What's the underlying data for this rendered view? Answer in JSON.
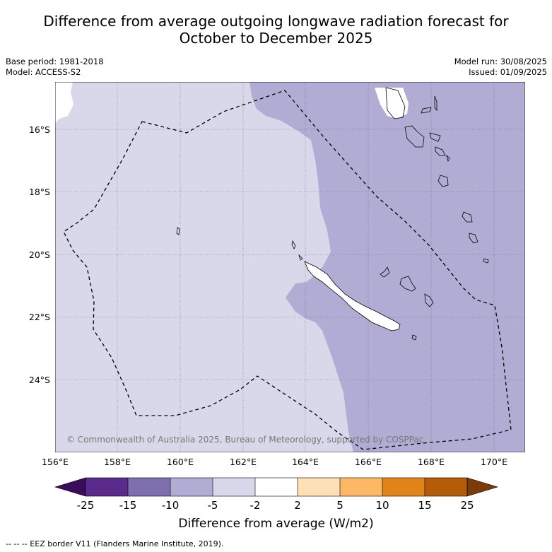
{
  "title": {
    "line1": "Difference from average outgoing longwave radiation forecast for",
    "line2": "October to December 2025"
  },
  "meta": {
    "base_period": "Base period: 1981-2018",
    "model": "Model: ACCESS-S2",
    "model_run": "Model run: 30/08/2025",
    "issued": "Issued: 01/09/2025"
  },
  "map": {
    "latitude_labels": [
      "16°S",
      "18°S",
      "20°S",
      "22°S",
      "24°S"
    ],
    "longitude_labels": [
      "156°E",
      "158°E",
      "160°E",
      "162°E",
      "164°E",
      "166°E",
      "168°E",
      "170°E"
    ],
    "copyright": "© Commonwealth of Australia 2025, Bureau of Meteorology, supported by COSPPac",
    "colors": {
      "band_-5_-2": "#d8d8ea",
      "band_-10_-5": "#b1acd3",
      "band_-2_2": "#ffffff"
    }
  },
  "colorbar": {
    "ticks": [
      "-25",
      "-15",
      "-10",
      "-5",
      "-2",
      "2",
      "5",
      "10",
      "15",
      "25"
    ],
    "colors": [
      "#3a0d5c",
      "#5a2b8a",
      "#7e70ae",
      "#b1acd3",
      "#d8d8ea",
      "#ffffff",
      "#fde0b5",
      "#fdb865",
      "#e08318",
      "#b45c0a",
      "#7a3a0a"
    ],
    "label": "Difference from average (W/m2)"
  },
  "footnote": "--  --  -- EEZ border V11 (Flanders Marine Institute, 2019)."
}
